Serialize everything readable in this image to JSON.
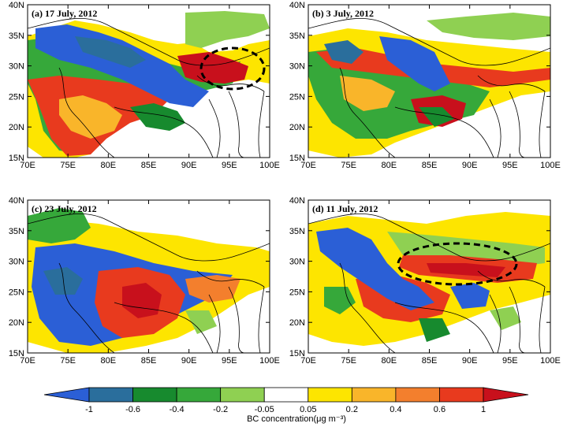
{
  "panels": [
    {
      "title": "(a) 17 July, 2012",
      "dashed_region": true
    },
    {
      "title": "(b) 3 July, 2012",
      "dashed_region": false
    },
    {
      "title": "(c) 23 July, 2012",
      "dashed_region": false
    },
    {
      "title": "(d) 11 July, 2012",
      "dashed_region": true
    }
  ],
  "axes": {
    "lon_labels": [
      "70E",
      "75E",
      "80E",
      "85E",
      "90E",
      "95E",
      "100E"
    ],
    "lat_labels": [
      "40N",
      "35N",
      "30N",
      "25N",
      "20N",
      "15N"
    ],
    "lon_range": [
      70,
      100
    ],
    "lat_range": [
      15,
      40
    ]
  },
  "colorbar": {
    "title": "BC concentration(μg m⁻³)",
    "labels": [
      "-1",
      "-0.6",
      "-0.4",
      "-0.2",
      "-0.05",
      "0.05",
      "0.2",
      "0.4",
      "0.6",
      "1"
    ],
    "colors": [
      "#2b5fd6",
      "#2a6e9c",
      "#178a2e",
      "#36a83a",
      "#8fd052",
      "#ffffff",
      "#fde500",
      "#f9b52a",
      "#f37f2d",
      "#e83a1e",
      "#c8101c"
    ]
  },
  "palette": {
    "blue": "#2b5fd6",
    "darkblue": "#2a6e9c",
    "darkgreen": "#178a2e",
    "green": "#36a83a",
    "lightgreen": "#8fd052",
    "yellow": "#fde500",
    "orange": "#f9b52a",
    "darkorange": "#f37f2d",
    "red": "#e83a1e",
    "darkred": "#c8101c"
  }
}
